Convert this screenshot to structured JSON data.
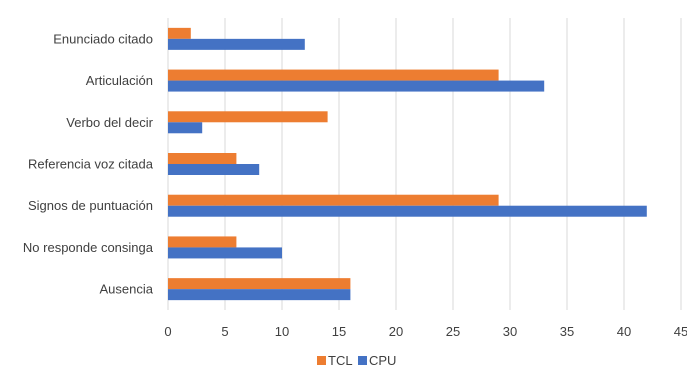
{
  "chart_data": {
    "type": "bar",
    "orientation": "horizontal",
    "categories": [
      "Enunciado citado",
      "Articulación",
      "Verbo del decir",
      "Referencia voz citada",
      "Signos de puntuación",
      "No responde consinga",
      "Ausencia"
    ],
    "series": [
      {
        "name": "TCL",
        "color": "#ED7D31",
        "values": [
          2,
          29,
          14,
          6,
          29,
          6,
          16
        ]
      },
      {
        "name": "CPU",
        "color": "#4472C4",
        "values": [
          12,
          33,
          3,
          8,
          42,
          10,
          16
        ]
      }
    ],
    "xlim": [
      0,
      45
    ],
    "xticks": [
      "0",
      "5",
      "10",
      "15",
      "20",
      "25",
      "30",
      "35",
      "40",
      "45"
    ],
    "grid": "vertical",
    "legend": "bottom-center",
    "title": "",
    "xlabel": "",
    "ylabel": ""
  }
}
